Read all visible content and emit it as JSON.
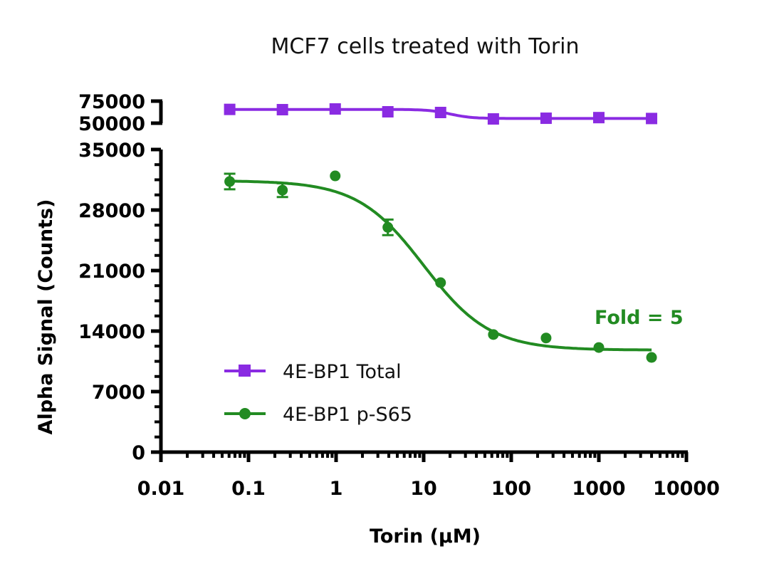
{
  "chart_data": {
    "type": "scatter",
    "title": "MCF7 cells treated with Torin",
    "xlabel": "Torin (µM)",
    "ylabel": "Alpha Signal (Counts)",
    "xscale": "log",
    "xlim": [
      0.01,
      10000
    ],
    "x_ticks": [
      "0.01",
      "0.1",
      "1",
      "10",
      "100",
      "1000",
      "10000"
    ],
    "y_axis_broken": true,
    "ylim_lower": [
      0,
      35000
    ],
    "y_ticks_lower": [
      "0",
      "7000",
      "14000",
      "21000",
      "28000",
      "35000"
    ],
    "ylim_upper": [
      50000,
      75000
    ],
    "y_ticks_upper": [
      "50000",
      "75000"
    ],
    "grid": false,
    "legend_position": "bottom-left",
    "x": [
      0.061,
      0.244,
      0.977,
      3.9,
      15.6,
      62.5,
      250,
      1000,
      4000
    ],
    "series": [
      {
        "name": "4E-BP1 Total",
        "color": "#8a2be2",
        "marker": "square",
        "values": [
          65600,
          65300,
          66100,
          62900,
          62100,
          54800,
          55600,
          56300,
          55300
        ]
      },
      {
        "name": "4E-BP1 p-S65",
        "color": "#228b22",
        "marker": "circle",
        "values": [
          31300,
          30300,
          31950,
          26000,
          19600,
          13600,
          13200,
          12100,
          10950
        ],
        "error": [
          900,
          800,
          0,
          900,
          0,
          0,
          0,
          0,
          0
        ]
      }
    ],
    "annotations": [
      {
        "text": "Fold = 5",
        "color": "#228b22"
      }
    ]
  }
}
